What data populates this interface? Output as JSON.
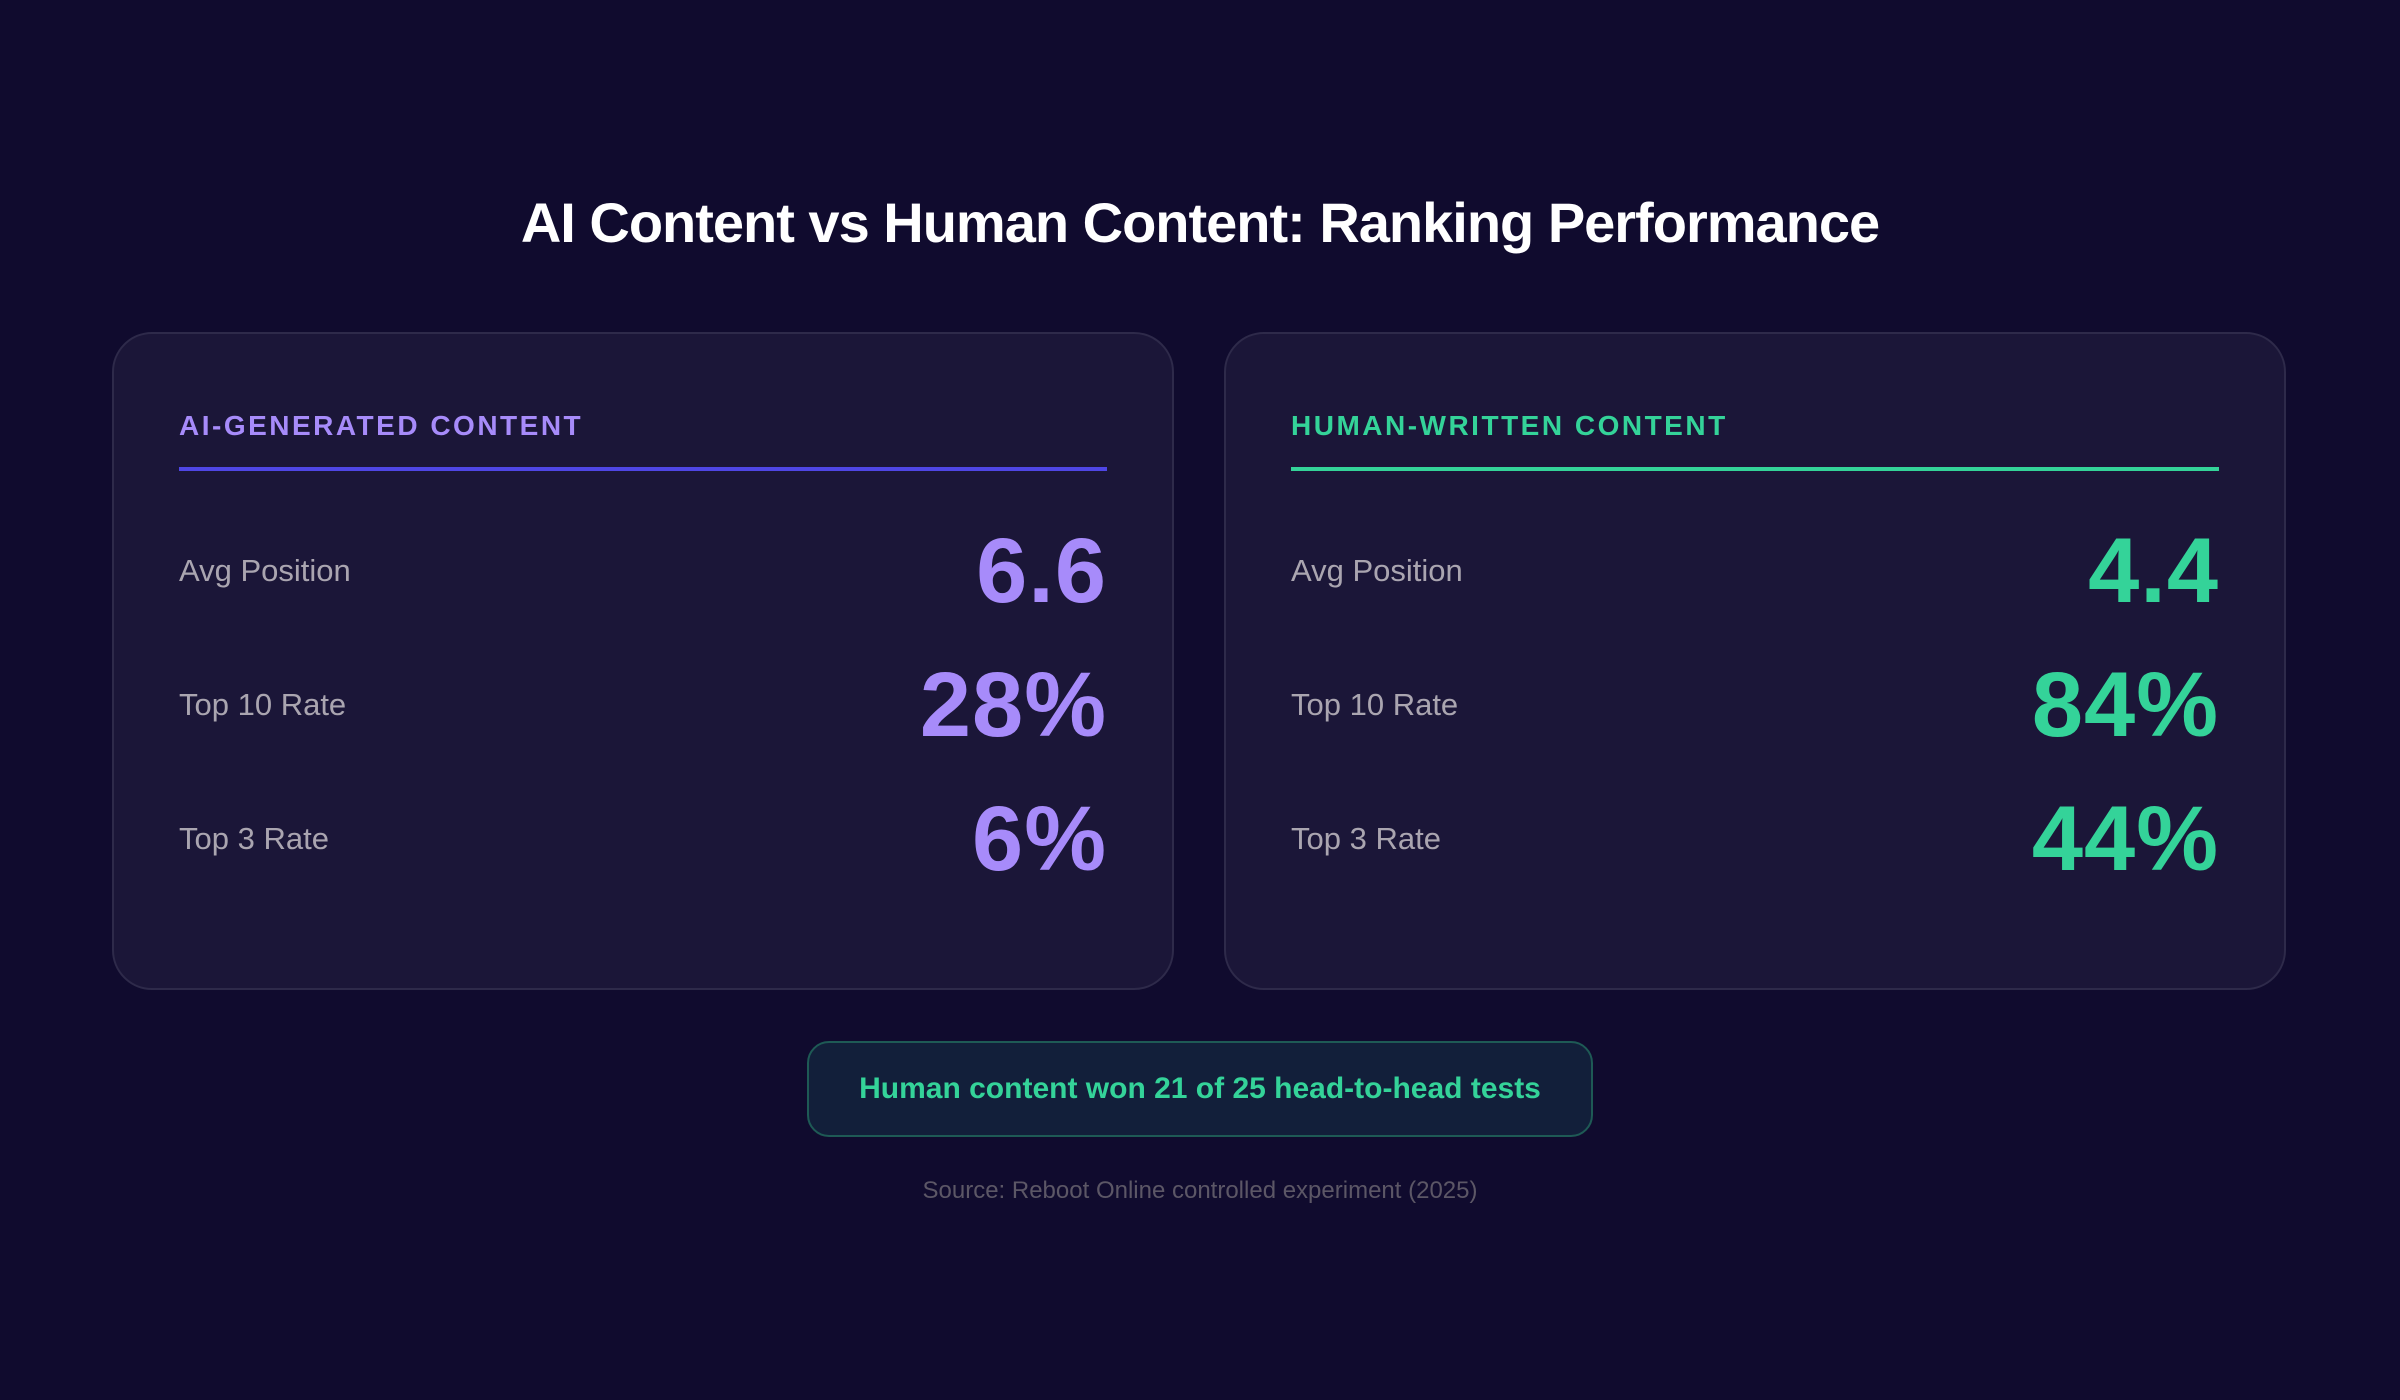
{
  "title": "AI Content vs Human Content: Ranking Performance",
  "colors": {
    "background": "#100b2e",
    "card": "#1b1638",
    "ai_accent": "#a78bfa",
    "ai_rule": "#4f46e5",
    "human_accent": "#34d399"
  },
  "cards": [
    {
      "heading": "AI-GENERATED CONTENT",
      "rows": [
        {
          "label": "Avg Position",
          "value": "6.6"
        },
        {
          "label": "Top 10 Rate",
          "value": "28%"
        },
        {
          "label": "Top 3 Rate",
          "value": "6%"
        }
      ]
    },
    {
      "heading": "HUMAN-WRITTEN CONTENT",
      "rows": [
        {
          "label": "Avg Position",
          "value": "4.4"
        },
        {
          "label": "Top 10 Rate",
          "value": "84%"
        },
        {
          "label": "Top 3 Rate",
          "value": "44%"
        }
      ]
    }
  ],
  "banner": "Human content won 21 of 25 head-to-head tests",
  "source": "Source: Reboot Online controlled experiment (2025)"
}
